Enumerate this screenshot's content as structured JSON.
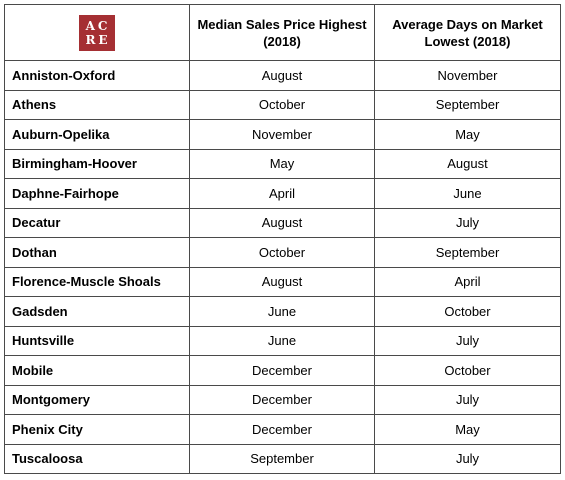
{
  "logo": {
    "line1": "AC",
    "line2": "RE",
    "color": "#a52f33"
  },
  "headers": {
    "col2": "Median Sales Price Highest (2018)",
    "col3": "Average Days on Market Lowest (2018)"
  },
  "rows": [
    {
      "city": "Anniston-Oxford",
      "price_high": "August",
      "dom_low": "November"
    },
    {
      "city": "Athens",
      "price_high": "October",
      "dom_low": "September"
    },
    {
      "city": "Auburn-Opelika",
      "price_high": "November",
      "dom_low": "May"
    },
    {
      "city": "Birmingham-Hoover",
      "price_high": "May",
      "dom_low": "August"
    },
    {
      "city": "Daphne-Fairhope",
      "price_high": "April",
      "dom_low": "June"
    },
    {
      "city": "Decatur",
      "price_high": "August",
      "dom_low": "July"
    },
    {
      "city": "Dothan",
      "price_high": "October",
      "dom_low": "September"
    },
    {
      "city": "Florence-Muscle Shoals",
      "price_high": "August",
      "dom_low": "April"
    },
    {
      "city": "Gadsden",
      "price_high": "June",
      "dom_low": "October"
    },
    {
      "city": "Huntsville",
      "price_high": "June",
      "dom_low": "July"
    },
    {
      "city": "Mobile",
      "price_high": "December",
      "dom_low": "October"
    },
    {
      "city": "Montgomery",
      "price_high": "December",
      "dom_low": "July"
    },
    {
      "city": "Phenix City",
      "price_high": "December",
      "dom_low": "May"
    },
    {
      "city": "Tuscaloosa",
      "price_high": "September",
      "dom_low": "July"
    }
  ]
}
